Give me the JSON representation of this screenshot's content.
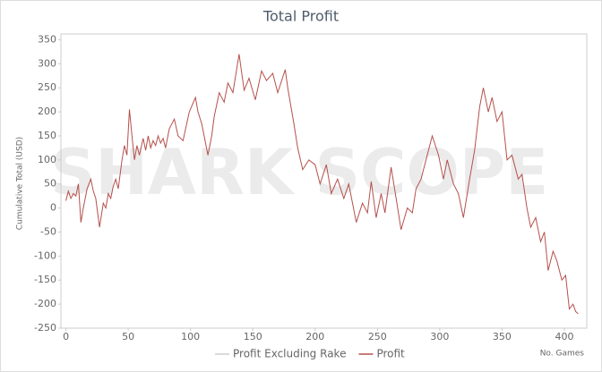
{
  "chart_data": {
    "type": "line",
    "title": "Total Profit",
    "watermark": "SHARK SCOPE",
    "y_label": "Cumulative Total (USD)",
    "x_label": "No. Games",
    "xlim": [
      -4,
      418
    ],
    "ylim": [
      -250,
      362
    ],
    "xticks": [
      0,
      50,
      100,
      150,
      200,
      250,
      300,
      350,
      400
    ],
    "yticks": [
      -250,
      -200,
      -150,
      -100,
      -50,
      0,
      50,
      100,
      150,
      200,
      250,
      300,
      350
    ],
    "series": [
      {
        "name": "Profit Excluding Rake",
        "color": "#cccccc",
        "visible": false
      },
      {
        "name": "Profit",
        "color": "#b5504c",
        "visible": true,
        "x": [
          0,
          2,
          4,
          6,
          8,
          10,
          12,
          14,
          17,
          20,
          22,
          24,
          27,
          30,
          32,
          34,
          36,
          38,
          40,
          42,
          45,
          47,
          49,
          51,
          53,
          55,
          57,
          59,
          62,
          64,
          66,
          68,
          70,
          72,
          74,
          76,
          78,
          80,
          83,
          87,
          90,
          94,
          99,
          104,
          106,
          109,
          114,
          117,
          119,
          123,
          127,
          130,
          134,
          139,
          143,
          147,
          152,
          157,
          161,
          166,
          170,
          176,
          178,
          183,
          186,
          190,
          195,
          200,
          204,
          209,
          213,
          218,
          223,
          227,
          233,
          238,
          242,
          245,
          249,
          253,
          256,
          261,
          265,
          269,
          274,
          278,
          281,
          285,
          291,
          294,
          299,
          303,
          306,
          311,
          315,
          319,
          324,
          328,
          332,
          335,
          339,
          342,
          346,
          350,
          354,
          358,
          363,
          366,
          370,
          373,
          377,
          381,
          384,
          387,
          391,
          394,
          398,
          401,
          404,
          407,
          409,
          411
        ],
        "values": [
          15,
          35,
          20,
          30,
          25,
          50,
          -30,
          0,
          40,
          60,
          35,
          20,
          -40,
          10,
          0,
          30,
          20,
          45,
          60,
          40,
          100,
          130,
          110,
          205,
          150,
          100,
          130,
          110,
          145,
          120,
          150,
          125,
          140,
          130,
          150,
          135,
          145,
          125,
          165,
          185,
          150,
          140,
          200,
          230,
          200,
          175,
          110,
          150,
          190,
          240,
          220,
          260,
          240,
          320,
          245,
          270,
          225,
          285,
          265,
          280,
          240,
          288,
          250,
          175,
          125,
          80,
          100,
          90,
          50,
          90,
          30,
          60,
          20,
          50,
          -30,
          10,
          -10,
          55,
          -20,
          30,
          -10,
          85,
          20,
          -45,
          0,
          -10,
          40,
          60,
          120,
          150,
          110,
          60,
          100,
          50,
          30,
          -20,
          60,
          120,
          210,
          250,
          200,
          230,
          180,
          200,
          100,
          110,
          60,
          70,
          0,
          -40,
          -20,
          -70,
          -50,
          -130,
          -90,
          -110,
          -150,
          -140,
          -210,
          -200,
          -215,
          -220
        ]
      }
    ]
  }
}
